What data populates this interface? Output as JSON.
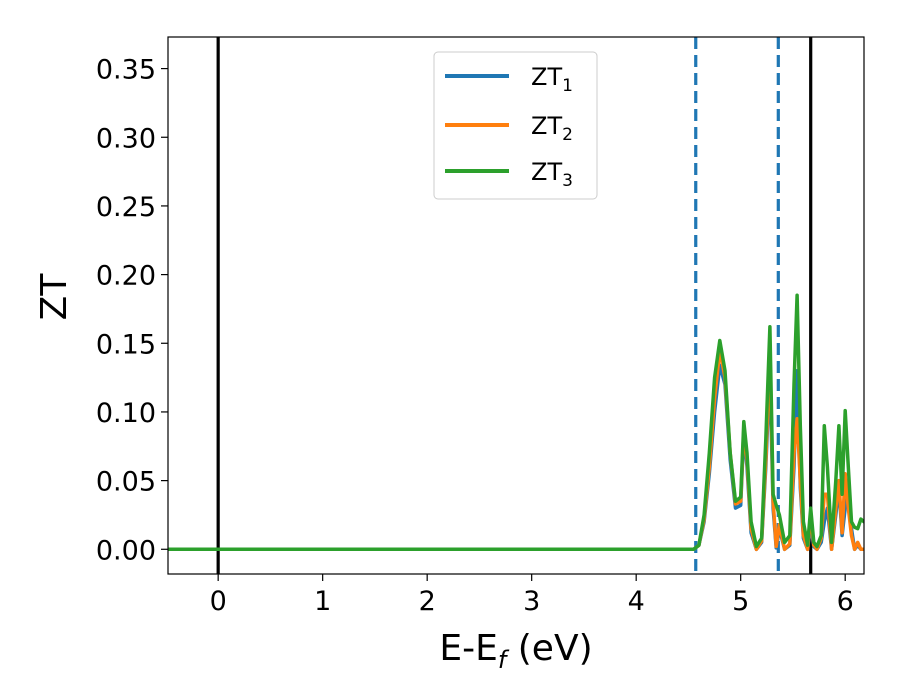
{
  "chart_data": {
    "type": "line",
    "xlabel": "E-E",
    "xlabel_subscript": "f",
    "xlabel_unit": " (eV)",
    "ylabel": "ZT",
    "xlim": [
      -0.48,
      6.18
    ],
    "ylim": [
      -0.018,
      0.373
    ],
    "xticks": [
      0,
      1,
      2,
      3,
      4,
      5,
      6
    ],
    "xtick_labels": [
      "0",
      "1",
      "2",
      "3",
      "4",
      "5",
      "6"
    ],
    "yticks": [
      0.0,
      0.05,
      0.1,
      0.15,
      0.2,
      0.25,
      0.3,
      0.35
    ],
    "ytick_labels": [
      "0.00",
      "0.05",
      "0.10",
      "0.15",
      "0.20",
      "0.25",
      "0.30",
      "0.35"
    ],
    "grid": false,
    "legend_position": "upper-center",
    "vertical_lines": [
      {
        "x": 0.0,
        "style": "solid",
        "color": "#000000"
      },
      {
        "x": 4.57,
        "style": "dashed",
        "color": "#1f77b4"
      },
      {
        "x": 5.36,
        "style": "dashed",
        "color": "#1f77b4"
      },
      {
        "x": 5.67,
        "style": "solid",
        "color": "#000000"
      }
    ],
    "series": [
      {
        "name": "ZT",
        "name_sub": "1",
        "color": "#1f77b4",
        "x": [
          -0.48,
          4.55,
          4.6,
          4.65,
          4.7,
          4.75,
          4.8,
          4.85,
          4.9,
          4.95,
          5.0,
          5.03,
          5.06,
          5.1,
          5.15,
          5.2,
          5.24,
          5.28,
          5.31,
          5.34,
          5.37,
          5.42,
          5.47,
          5.51,
          5.54,
          5.57,
          5.6,
          5.64,
          5.67,
          5.7,
          5.73,
          5.77,
          5.8,
          5.83,
          5.87,
          5.91,
          5.94,
          5.97,
          6.0,
          6.03,
          6.06,
          6.09,
          6.12,
          6.15,
          6.18
        ],
        "y": [
          0.0,
          0.0,
          0.003,
          0.02,
          0.055,
          0.1,
          0.134,
          0.12,
          0.065,
          0.03,
          0.032,
          0.085,
          0.06,
          0.012,
          0.0,
          0.005,
          0.06,
          0.13,
          0.03,
          0.001,
          0.015,
          0.0,
          0.003,
          0.06,
          0.13,
          0.045,
          0.008,
          0.0,
          0.018,
          0.002,
          0.0,
          0.005,
          0.02,
          0.03,
          0.0,
          0.025,
          0.045,
          0.01,
          0.03,
          0.05,
          0.015,
          0.0,
          0.003,
          0.0,
          0.0
        ]
      },
      {
        "name": "ZT",
        "name_sub": "2",
        "color": "#ff7f0e",
        "x": [
          -0.48,
          4.55,
          4.6,
          4.65,
          4.7,
          4.75,
          4.8,
          4.85,
          4.9,
          4.95,
          5.0,
          5.03,
          5.06,
          5.1,
          5.15,
          5.2,
          5.24,
          5.28,
          5.31,
          5.34,
          5.37,
          5.42,
          5.47,
          5.51,
          5.54,
          5.57,
          5.6,
          5.64,
          5.67,
          5.7,
          5.73,
          5.77,
          5.8,
          5.83,
          5.87,
          5.91,
          5.94,
          5.97,
          6.0,
          6.03,
          6.06,
          6.09,
          6.12,
          6.15,
          6.18
        ],
        "y": [
          0.0,
          0.0,
          0.003,
          0.022,
          0.06,
          0.11,
          0.145,
          0.125,
          0.07,
          0.033,
          0.035,
          0.088,
          0.065,
          0.015,
          0.0,
          0.006,
          0.065,
          0.145,
          0.035,
          0.002,
          0.018,
          0.0,
          0.004,
          0.07,
          0.095,
          0.05,
          0.01,
          0.0,
          0.025,
          0.003,
          0.0,
          0.008,
          0.04,
          0.04,
          0.0,
          0.03,
          0.05,
          0.012,
          0.055,
          0.03,
          0.01,
          0.0,
          0.005,
          0.0,
          0.0
        ]
      },
      {
        "name": "ZT",
        "name_sub": "3",
        "color": "#2ca02c",
        "x": [
          -0.48,
          4.55,
          4.6,
          4.65,
          4.7,
          4.75,
          4.8,
          4.85,
          4.9,
          4.95,
          5.0,
          5.03,
          5.06,
          5.1,
          5.15,
          5.2,
          5.24,
          5.28,
          5.31,
          5.34,
          5.37,
          5.42,
          5.47,
          5.51,
          5.54,
          5.57,
          5.6,
          5.64,
          5.67,
          5.7,
          5.73,
          5.77,
          5.8,
          5.83,
          5.87,
          5.91,
          5.94,
          5.97,
          6.0,
          6.03,
          6.06,
          6.09,
          6.12,
          6.15,
          6.18
        ],
        "y": [
          0.0,
          0.0,
          0.003,
          0.025,
          0.07,
          0.125,
          0.152,
          0.13,
          0.07,
          0.035,
          0.038,
          0.093,
          0.07,
          0.02,
          0.002,
          0.008,
          0.08,
          0.162,
          0.04,
          0.032,
          0.025,
          0.005,
          0.01,
          0.12,
          0.185,
          0.09,
          0.02,
          0.003,
          0.03,
          0.005,
          0.002,
          0.01,
          0.09,
          0.06,
          0.005,
          0.05,
          0.09,
          0.04,
          0.101,
          0.06,
          0.02,
          0.016,
          0.015,
          0.022,
          0.02
        ]
      }
    ]
  }
}
